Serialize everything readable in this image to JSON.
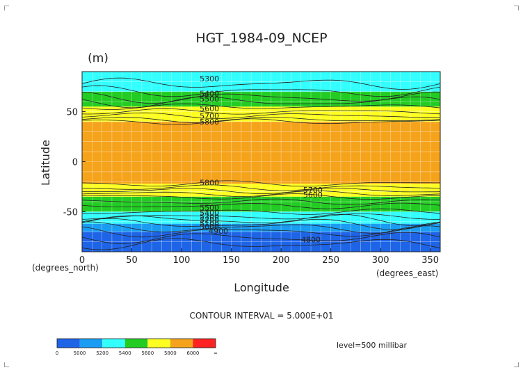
{
  "chart_data": {
    "type": "heatmap",
    "title": "HGT_1984-09_NCEP",
    "unit": "(m)",
    "xlabel": "Longitude",
    "ylabel": "Latitude",
    "x_unit_label": "(degrees_east)",
    "y_unit_label": "(degrees_north)",
    "xlim": [
      0,
      360
    ],
    "ylim": [
      -90,
      90
    ],
    "x_ticks": [
      "0",
      "50",
      "100",
      "150",
      "200",
      "250",
      "300",
      "350"
    ],
    "x_tick_values": [
      0,
      50,
      100,
      150,
      200,
      250,
      300,
      350
    ],
    "y_ticks": [
      "50",
      "0",
      "-50"
    ],
    "y_tick_values": [
      50,
      0,
      -50
    ],
    "grid": true,
    "contour_interval_text": "CONTOUR INTERVAL = 5.000E+01",
    "level_text": "level=500 millibar",
    "contour_labels": [
      {
        "text": "5300",
        "lon": 128,
        "lat": 83
      },
      {
        "text": "5400",
        "lon": 128,
        "lat": 68
      },
      {
        "text": "5500",
        "lon": 128,
        "lat": 63
      },
      {
        "text": "5600",
        "lon": 128,
        "lat": 53
      },
      {
        "text": "5700",
        "lon": 128,
        "lat": 46
      },
      {
        "text": "5800",
        "lon": 128,
        "lat": 40
      },
      {
        "text": "5800",
        "lon": 128,
        "lat": -21
      },
      {
        "text": "5700",
        "lon": 232,
        "lat": -28
      },
      {
        "text": "5600",
        "lon": 232,
        "lat": -33
      },
      {
        "text": "5500",
        "lon": 128,
        "lat": -46
      },
      {
        "text": "5400",
        "lon": 128,
        "lat": -51
      },
      {
        "text": "5300",
        "lon": 128,
        "lat": -55
      },
      {
        "text": "5200",
        "lon": 128,
        "lat": -58
      },
      {
        "text": "5100",
        "lon": 128,
        "lat": -62
      },
      {
        "text": "5000",
        "lon": 128,
        "lat": -65
      },
      {
        "text": "4900",
        "lon": 137,
        "lat": -69
      },
      {
        "text": "4800",
        "lon": 230,
        "lat": -78
      }
    ],
    "bands": [
      {
        "from_lat": 90,
        "to_lat": 70,
        "value": 5300,
        "color": "#33ffff"
      },
      {
        "from_lat": 70,
        "to_lat": 55,
        "value": 5500,
        "color": "#22cc22"
      },
      {
        "from_lat": 55,
        "to_lat": 40,
        "value": 5700,
        "color": "#ffff22"
      },
      {
        "from_lat": 40,
        "to_lat": -22,
        "value": 5850,
        "color": "#f5a31b"
      },
      {
        "from_lat": -22,
        "to_lat": -35,
        "value": 5700,
        "color": "#ffff22"
      },
      {
        "from_lat": -35,
        "to_lat": -50,
        "value": 5500,
        "color": "#22cc22"
      },
      {
        "from_lat": -50,
        "to_lat": -62,
        "value": 5300,
        "color": "#33ffff"
      },
      {
        "from_lat": -62,
        "to_lat": -70,
        "value": 5100,
        "color": "#1a9cf2"
      },
      {
        "from_lat": -70,
        "to_lat": -90,
        "value": 4900,
        "color": "#1e64e6"
      }
    ],
    "colorbar": {
      "labels": [
        "0",
        "5000",
        "5200",
        "5400",
        "5600",
        "5800",
        "6000",
        "∞"
      ],
      "colors": [
        "#1e64e6",
        "#1a9cf2",
        "#33ffff",
        "#22cc22",
        "#ffff22",
        "#f5a31b",
        "#ff2222"
      ]
    }
  }
}
